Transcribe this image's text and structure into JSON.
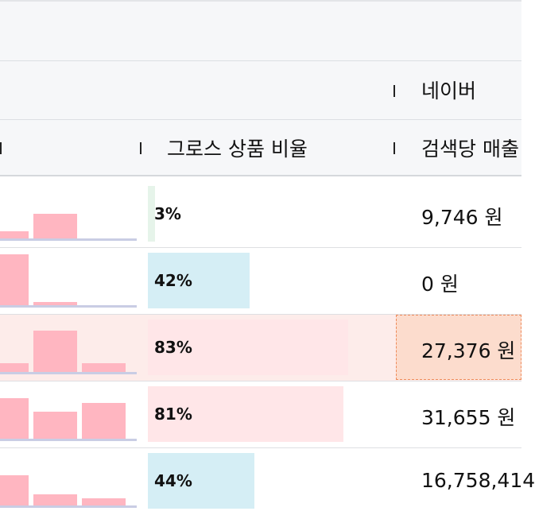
{
  "header": {
    "group_label": "네이버",
    "col_gross_ratio": "그로스 상품 비율",
    "col_revenue_per_search": "검색당 매출"
  },
  "colors": {
    "spark_bar": "#ffb6c1",
    "ratio_low": "#e6f4ea",
    "ratio_mid": "#d5eef5",
    "ratio_high": "#ffe6e8",
    "highlight_row": "#fdecea",
    "highlight_cell": "#fcdccd"
  },
  "rows": [
    {
      "sparkline": [
        0.15,
        0.45
      ],
      "ratio": 3,
      "ratio_text": "3%",
      "revenue": "9,746 원",
      "highlighted": false
    },
    {
      "sparkline": [
        1.0,
        0.08
      ],
      "ratio": 42,
      "ratio_text": "42%",
      "revenue": "0 원",
      "highlighted": false
    },
    {
      "sparkline": [
        0.2,
        0.8,
        0.2
      ],
      "ratio": 83,
      "ratio_text": "83%",
      "revenue": "27,376 원",
      "highlighted": true
    },
    {
      "sparkline": [
        0.8,
        0.55,
        0.7
      ],
      "ratio": 81,
      "ratio_text": "81%",
      "revenue": "31,655 원",
      "highlighted": false
    },
    {
      "sparkline": [
        0.6,
        0.23,
        0.15
      ],
      "ratio": 44,
      "ratio_text": "44%",
      "revenue": "16,758,414",
      "highlighted": false
    }
  ]
}
